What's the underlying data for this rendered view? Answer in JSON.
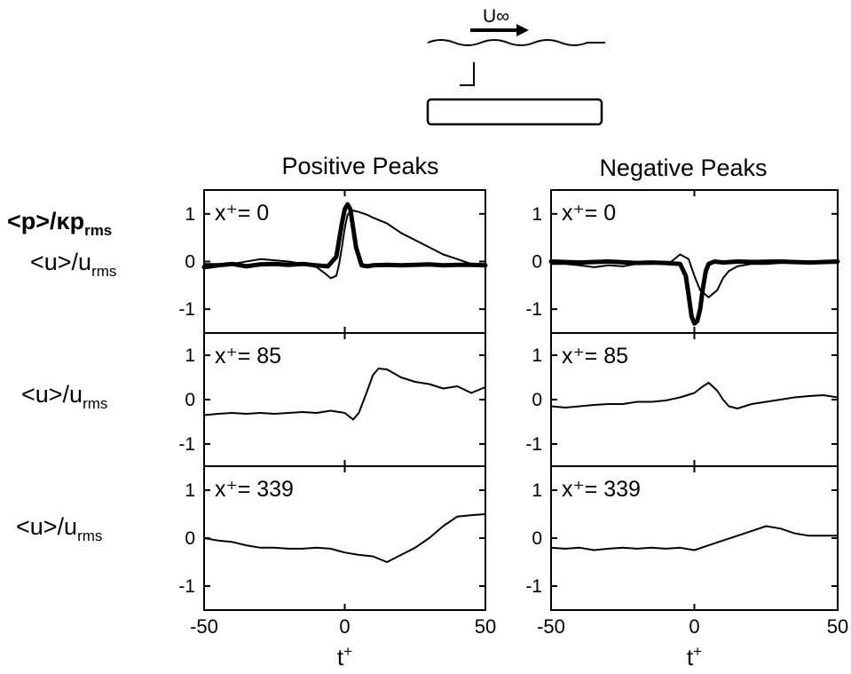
{
  "schematic": {
    "flow_label": "U∞"
  },
  "columns": [
    {
      "title": "Positive Peaks"
    },
    {
      "title": "Negative Peaks"
    }
  ],
  "ylabels": {
    "row0_line1": "<p>/κp",
    "row0_line1_sub": "rms",
    "row0_line2": "<u>/u",
    "row0_line2_sub": "rms",
    "row1": "<u>/u",
    "row1_sub": "rms",
    "row2": "<u>/u",
    "row2_sub": "rms"
  },
  "xlabel": {
    "main": "t",
    "sup": "+"
  },
  "panel_labels": [
    "x⁺= 0",
    "x⁺= 85",
    "x⁺= 339"
  ],
  "xticks": [
    "-50",
    "0",
    "50"
  ],
  "yticks": [
    "1",
    "0",
    "-1"
  ],
  "chart_data": {
    "type": "line",
    "title": "",
    "xlabel": "t+",
    "xlim": [
      -50,
      50
    ],
    "ylim": [
      -1.5,
      1.5
    ],
    "columns": [
      "Positive Peaks",
      "Negative Peaks"
    ],
    "rows": [
      "x+= 0",
      "x+= 85",
      "x+= 339"
    ],
    "panels": [
      {
        "column": "Positive Peaks",
        "row": "x+= 0",
        "series": [
          {
            "style": "thick",
            "x": [
              -50,
              -45,
              -40,
              -35,
              -30,
              -25,
              -20,
              -15,
              -10,
              -6,
              -3,
              -1,
              0,
              1,
              2,
              3,
              4,
              6,
              8,
              10,
              15,
              20,
              25,
              30,
              35,
              40,
              45,
              50
            ],
            "y": [
              -0.12,
              -0.08,
              -0.05,
              -0.1,
              -0.06,
              -0.05,
              -0.07,
              -0.05,
              -0.08,
              -0.1,
              0.1,
              0.8,
              1.1,
              1.2,
              1.1,
              0.7,
              0.3,
              -0.08,
              -0.1,
              -0.08,
              -0.07,
              -0.08,
              -0.07,
              -0.06,
              -0.08,
              -0.07,
              -0.07,
              -0.08
            ]
          },
          {
            "style": "thin",
            "x": [
              -50,
              -40,
              -30,
              -20,
              -15,
              -10,
              -7,
              -5,
              -3,
              -2,
              -1,
              0,
              1,
              2,
              3,
              5,
              8,
              10,
              15,
              20,
              25,
              30,
              35,
              40,
              45,
              50
            ],
            "y": [
              -0.05,
              -0.05,
              0.05,
              0.0,
              -0.05,
              -0.12,
              -0.25,
              -0.35,
              -0.3,
              -0.05,
              0.3,
              0.7,
              0.98,
              1.05,
              1.07,
              1.04,
              0.98,
              0.92,
              0.8,
              0.6,
              0.45,
              0.3,
              0.15,
              0.05,
              -0.05,
              -0.1
            ]
          }
        ]
      },
      {
        "column": "Positive Peaks",
        "row": "x+= 85",
        "series": [
          {
            "style": "thin",
            "x": [
              -50,
              -45,
              -40,
              -35,
              -30,
              -25,
              -20,
              -15,
              -10,
              -5,
              0,
              3,
              5,
              8,
              10,
              12,
              15,
              20,
              25,
              30,
              35,
              40,
              45,
              50
            ],
            "y": [
              -0.35,
              -0.32,
              -0.3,
              -0.32,
              -0.3,
              -0.32,
              -0.3,
              -0.28,
              -0.3,
              -0.25,
              -0.3,
              -0.45,
              -0.3,
              0.2,
              0.55,
              0.7,
              0.68,
              0.5,
              0.4,
              0.35,
              0.25,
              0.3,
              0.15,
              0.28
            ]
          }
        ]
      },
      {
        "column": "Positive Peaks",
        "row": "x+= 339",
        "series": [
          {
            "style": "thin",
            "x": [
              -50,
              -45,
              -40,
              -35,
              -30,
              -25,
              -20,
              -15,
              -10,
              -5,
              0,
              5,
              10,
              15,
              20,
              25,
              30,
              35,
              40,
              45,
              50
            ],
            "y": [
              0.0,
              -0.05,
              -0.08,
              -0.15,
              -0.2,
              -0.2,
              -0.22,
              -0.22,
              -0.2,
              -0.22,
              -0.3,
              -0.35,
              -0.38,
              -0.5,
              -0.35,
              -0.2,
              0.0,
              0.25,
              0.45,
              0.48,
              0.5
            ]
          }
        ]
      },
      {
        "column": "Negative Peaks",
        "row": "x+= 0",
        "series": [
          {
            "style": "thick",
            "x": [
              -50,
              -40,
              -30,
              -20,
              -15,
              -10,
              -5,
              -3,
              -2,
              -1,
              0,
              1,
              2,
              3,
              4,
              5,
              7,
              10,
              15,
              20,
              30,
              40,
              50
            ],
            "y": [
              0.0,
              -0.02,
              0.0,
              -0.03,
              -0.02,
              -0.03,
              -0.05,
              -0.3,
              -0.7,
              -1.15,
              -1.3,
              -1.25,
              -1.0,
              -0.55,
              -0.2,
              -0.05,
              0.0,
              -0.02,
              0.0,
              -0.01,
              0.0,
              -0.02,
              0.0
            ]
          },
          {
            "style": "thin",
            "x": [
              -50,
              -45,
              -40,
              -35,
              -30,
              -25,
              -20,
              -15,
              -10,
              -8,
              -5,
              -2,
              0,
              2,
              5,
              8,
              10,
              12,
              15,
              20,
              25,
              30,
              40,
              50
            ],
            "y": [
              -0.05,
              -0.05,
              -0.08,
              -0.12,
              -0.08,
              -0.1,
              -0.05,
              -0.05,
              -0.03,
              0.0,
              0.15,
              0.05,
              -0.3,
              -0.6,
              -0.75,
              -0.6,
              -0.35,
              -0.2,
              -0.1,
              -0.05,
              -0.05,
              -0.03,
              -0.03,
              -0.03
            ]
          }
        ]
      },
      {
        "column": "Negative Peaks",
        "row": "x+= 85",
        "series": [
          {
            "style": "thin",
            "x": [
              -50,
              -45,
              -40,
              -35,
              -30,
              -25,
              -20,
              -15,
              -10,
              -5,
              0,
              3,
              5,
              8,
              10,
              12,
              15,
              20,
              25,
              30,
              35,
              40,
              45,
              50
            ],
            "y": [
              -0.15,
              -0.18,
              -0.15,
              -0.12,
              -0.1,
              -0.1,
              -0.05,
              -0.05,
              -0.02,
              0.05,
              0.15,
              0.3,
              0.38,
              0.2,
              0.0,
              -0.15,
              -0.2,
              -0.1,
              -0.05,
              0.0,
              0.05,
              0.08,
              0.1,
              0.05
            ]
          }
        ]
      },
      {
        "column": "Negative Peaks",
        "row": "x+= 339",
        "series": [
          {
            "style": "thin",
            "x": [
              -50,
              -45,
              -40,
              -35,
              -30,
              -25,
              -20,
              -15,
              -10,
              -5,
              0,
              5,
              10,
              15,
              20,
              25,
              30,
              35,
              40,
              45,
              50
            ],
            "y": [
              -0.2,
              -0.22,
              -0.2,
              -0.25,
              -0.22,
              -0.2,
              -0.22,
              -0.2,
              -0.22,
              -0.2,
              -0.25,
              -0.15,
              -0.05,
              0.05,
              0.15,
              0.25,
              0.2,
              0.1,
              0.05,
              0.05,
              0.05
            ]
          }
        ]
      }
    ]
  }
}
